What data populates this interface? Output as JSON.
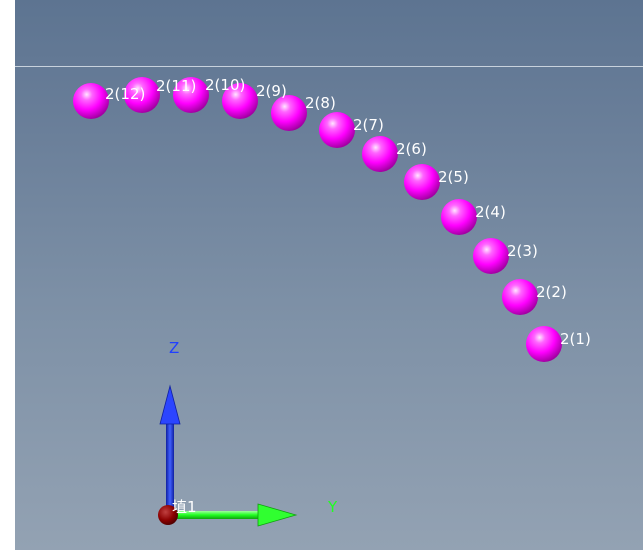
{
  "scene": {
    "nodes": [
      {
        "label": "2(1)"
      },
      {
        "label": "2(2)"
      },
      {
        "label": "2(3)"
      },
      {
        "label": "2(4)"
      },
      {
        "label": "2(5)"
      },
      {
        "label": "2(6)"
      },
      {
        "label": "2(7)"
      },
      {
        "label": "2(8)"
      },
      {
        "label": "2(9)"
      },
      {
        "label": "2(10)"
      },
      {
        "label": "2(11)"
      },
      {
        "label": "2(12)"
      }
    ],
    "node_color": "#ff00ff",
    "label_color": "#ffffff"
  },
  "axes": {
    "z_label": "Z",
    "y_label": "Y",
    "origin_label": "埴1",
    "z_color": "#2040ff",
    "y_color": "#20ff20",
    "origin_color": "#8b0000"
  }
}
